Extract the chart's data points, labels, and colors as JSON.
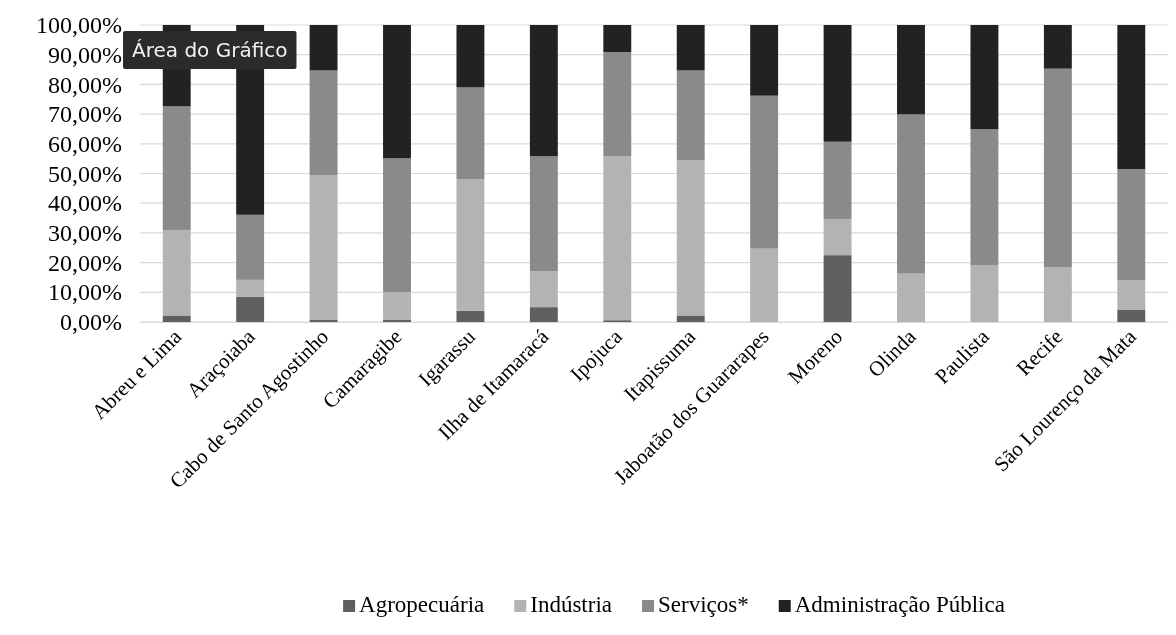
{
  "chart_data": {
    "type": "bar",
    "stacked": true,
    "categories": [
      "Abreu e Lima",
      "Araçoiaba",
      "Cabo de Santo Agostinho",
      "Camaragibe",
      "Igarassu",
      "Ilha de Itamaracá",
      "Ipojuca",
      "Itapissuma",
      "Jaboatão dos Guararapes",
      "Moreno",
      "Olinda",
      "Paulista",
      "Recife",
      "São Lourenço da Mata"
    ],
    "series": [
      {
        "name": "Agropecuária",
        "color": "#5f5f5f",
        "values": [
          2.2,
          8.5,
          0.8,
          0.8,
          3.8,
          5.0,
          0.6,
          2.2,
          0,
          22.5,
          0,
          0,
          0,
          4.2
        ]
      },
      {
        "name": "Indústria",
        "color": "#b3b3b3",
        "values": [
          28.8,
          5.7,
          48.6,
          9.3,
          44.3,
          12.1,
          55.2,
          52.2,
          24.7,
          12.2,
          16.3,
          19.2,
          18.5,
          9.9
        ]
      },
      {
        "name": "Serviços*",
        "color": "#8a8a8a",
        "values": [
          41.6,
          21.9,
          35.3,
          45.0,
          30.9,
          38.7,
          35.1,
          30.3,
          51.5,
          26.0,
          53.6,
          45.7,
          66.8,
          37.4
        ]
      },
      {
        "name": "Administração Pública",
        "color": "#222222",
        "values": [
          27.4,
          63.9,
          15.3,
          44.9,
          21.0,
          44.2,
          9.1,
          15.3,
          23.8,
          39.3,
          30.1,
          35.1,
          14.7,
          48.5
        ]
      }
    ],
    "ylim": [
      0,
      100
    ],
    "yticks": [
      {
        "value": 0,
        "label": "0,00%"
      },
      {
        "value": 10,
        "label": "10,00%"
      },
      {
        "value": 20,
        "label": "20,00%"
      },
      {
        "value": 30,
        "label": "30,00%"
      },
      {
        "value": 40,
        "label": "40,00%"
      },
      {
        "value": 50,
        "label": "50,00%"
      },
      {
        "value": 60,
        "label": "60,00%"
      },
      {
        "value": 70,
        "label": "70,00%"
      },
      {
        "value": 80,
        "label": "80,00%"
      },
      {
        "value": 90,
        "label": "90,00%"
      },
      {
        "value": 100,
        "label": "100,00%"
      }
    ],
    "grid": "y",
    "legend": "bottom",
    "annotations": [
      "Área do Gráfico"
    ]
  }
}
